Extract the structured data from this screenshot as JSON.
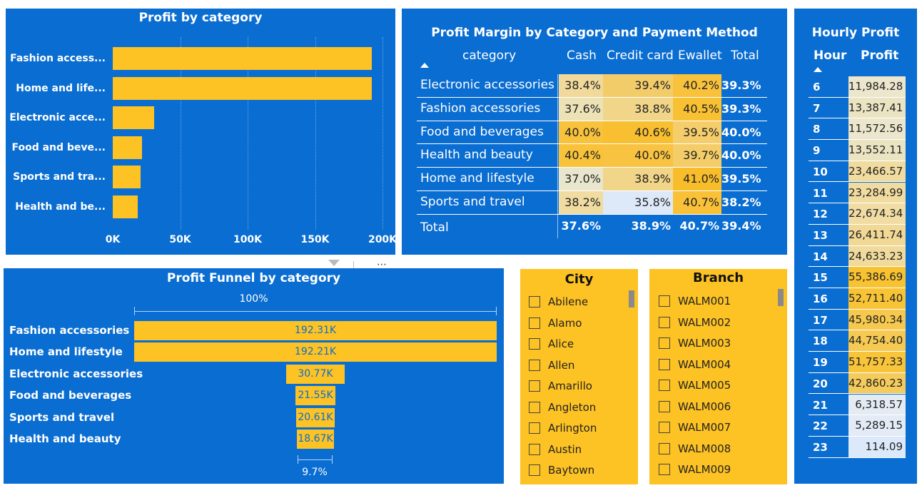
{
  "profit_by_category": {
    "title": "Profit by category",
    "categories": [
      "Fashion access...",
      "Home and life...",
      "Electronic acce...",
      "Food and beve...",
      "Sports and tra...",
      "Health and be..."
    ],
    "values": [
      192310,
      192210,
      30770,
      21550,
      20610,
      18670
    ],
    "axis_ticks": [
      "0K",
      "50K",
      "100K",
      "150K",
      "200K"
    ],
    "xmax": 200000
  },
  "profit_margin": {
    "title": "Profit Margin by Category and Payment Method",
    "col_header_category": "category",
    "columns": [
      "Cash",
      "Credit card",
      "Ewallet",
      "Total"
    ],
    "rows": [
      {
        "label": "Electronic accessories",
        "cells": [
          "38.4%",
          "39.4%",
          "40.2%",
          "39.3%"
        ]
      },
      {
        "label": "Fashion accessories",
        "cells": [
          "37.6%",
          "38.8%",
          "40.5%",
          "39.3%"
        ]
      },
      {
        "label": "Food and beverages",
        "cells": [
          "40.0%",
          "40.6%",
          "39.5%",
          "40.0%"
        ]
      },
      {
        "label": "Health and beauty",
        "cells": [
          "40.4%",
          "40.0%",
          "39.7%",
          "40.0%"
        ]
      },
      {
        "label": "Home and lifestyle",
        "cells": [
          "37.0%",
          "38.9%",
          "41.0%",
          "39.5%"
        ]
      },
      {
        "label": "Sports and travel",
        "cells": [
          "38.2%",
          "35.8%",
          "40.7%",
          "38.2%"
        ]
      }
    ],
    "total_row": {
      "label": "Total",
      "cells": [
        "37.6%",
        "38.9%",
        "40.7%",
        "39.4%"
      ]
    },
    "cell_colors": [
      [
        "#f0d99a",
        "#f3cc6a",
        "#f8c23c"
      ],
      [
        "#ece2b6",
        "#f1d689",
        "#f8c033"
      ],
      [
        "#f8c23c",
        "#f8bf30",
        "#f5cd6b"
      ],
      [
        "#f8c23a",
        "#f8c340",
        "#f4cd69"
      ],
      [
        "#e8e6cc",
        "#f1d588",
        "#f8bd2b"
      ],
      [
        "#f0dba0",
        "#dde9f8",
        "#f8c137"
      ]
    ]
  },
  "hourly_profit": {
    "title": "Hourly Profit",
    "col_hour": "Hour",
    "col_profit": "Profit",
    "rows": [
      {
        "hour": "6",
        "profit": "11,984.28",
        "color": "#ebe6cc"
      },
      {
        "hour": "7",
        "profit": "13,387.41",
        "color": "#ebe4c2"
      },
      {
        "hour": "8",
        "profit": "11,572.56",
        "color": "#ebe6cc"
      },
      {
        "hour": "9",
        "profit": "13,552.11",
        "color": "#ebe4c2"
      },
      {
        "hour": "10",
        "profit": "23,466.57",
        "color": "#f1dca0"
      },
      {
        "hour": "11",
        "profit": "23,284.99",
        "color": "#f1dca0"
      },
      {
        "hour": "12",
        "profit": "22,674.34",
        "color": "#f1dca3"
      },
      {
        "hour": "13",
        "profit": "26,411.74",
        "color": "#f1d895"
      },
      {
        "hour": "14",
        "profit": "24,633.23",
        "color": "#f1db9c"
      },
      {
        "hour": "15",
        "profit": "55,386.69",
        "color": "#f8c230"
      },
      {
        "hour": "16",
        "profit": "52,711.40",
        "color": "#f8c436"
      },
      {
        "hour": "17",
        "profit": "45,980.34",
        "color": "#f6c94e"
      },
      {
        "hour": "18",
        "profit": "44,754.40",
        "color": "#f6ca52"
      },
      {
        "hour": "19",
        "profit": "51,757.33",
        "color": "#f8c43a"
      },
      {
        "hour": "20",
        "profit": "42,860.23",
        "color": "#f5cc5c"
      },
      {
        "hour": "21",
        "profit": "6,318.57",
        "color": "#e4ebf3"
      },
      {
        "hour": "22",
        "profit": "5,289.15",
        "color": "#e2ebf6"
      },
      {
        "hour": "23",
        "profit": "114.09",
        "color": "#dbe9fb"
      }
    ]
  },
  "funnel": {
    "title": "Profit Funnel by category",
    "top_pct": "100%",
    "bottom_pct": "9.7%",
    "rows": [
      {
        "label": "Fashion accessories",
        "value": 192310,
        "text": "192.31K"
      },
      {
        "label": "Home and lifestyle",
        "value": 192210,
        "text": "192.21K"
      },
      {
        "label": "Electronic accessories",
        "value": 30770,
        "text": "30.77K"
      },
      {
        "label": "Food and beverages",
        "value": 21550,
        "text": "21.55K"
      },
      {
        "label": "Sports and travel",
        "value": 20610,
        "text": "20.61K"
      },
      {
        "label": "Health and beauty",
        "value": 18670,
        "text": "18.67K"
      }
    ]
  },
  "city_slicer": {
    "title": "City",
    "items": [
      "Abilene",
      "Alamo",
      "Alice",
      "Allen",
      "Amarillo",
      "Angleton",
      "Arlington",
      "Austin",
      "Baytown"
    ]
  },
  "branch_slicer": {
    "title": "Branch",
    "items": [
      "WALM001",
      "WALM002",
      "WALM003",
      "WALM004",
      "WALM005",
      "WALM006",
      "WALM007",
      "WALM008",
      "WALM009"
    ]
  },
  "chart_data": [
    {
      "type": "bar",
      "title": "Profit by category",
      "categories": [
        "Fashion access...",
        "Home and life...",
        "Electronic acce...",
        "Food and beve...",
        "Sports and tra...",
        "Health and be..."
      ],
      "values": [
        192310,
        192210,
        30770,
        21550,
        20610,
        18670
      ],
      "xlim": [
        0,
        200000
      ],
      "tick_labels": [
        "0K",
        "50K",
        "100K",
        "150K",
        "200K"
      ],
      "grid": true
    },
    {
      "type": "bar",
      "title": "Profit Funnel by category",
      "categories": [
        "Fashion accessories",
        "Home and lifestyle",
        "Electronic accessories",
        "Food and beverages",
        "Sports and travel",
        "Health and beauty"
      ],
      "values": [
        192310,
        192210,
        30770,
        21550,
        20610,
        18670
      ],
      "data_labels": [
        "192.31K",
        "192.21K",
        "30.77K",
        "21.55K",
        "20.61K",
        "18.67K"
      ],
      "annotations": [
        "100%",
        "9.7%"
      ]
    }
  ]
}
